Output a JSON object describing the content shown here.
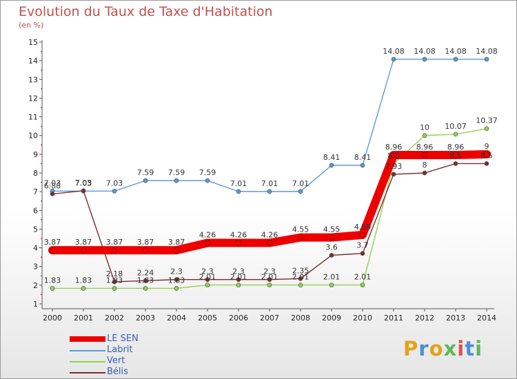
{
  "header": {
    "title": "Evolution du Taux de Taxe d'Habitation",
    "unit": "(en %)"
  },
  "logo": {
    "letters": [
      "P",
      "r",
      "o",
      "x",
      "i",
      "t",
      "i"
    ],
    "colors": [
      "#e3a21a",
      "#4a90d9",
      "#e3a21a",
      "#5cb85c",
      "#d9534f",
      "#4a90d9",
      "#5cb85c"
    ]
  },
  "chart_data": {
    "type": "line",
    "title": "Evolution du Taux de Taxe d'Habitation",
    "ylabel": "(en %)",
    "xlabel": "",
    "x": [
      "2000",
      "2001",
      "2002",
      "2003",
      "2004",
      "2005",
      "2006",
      "2007",
      "2008",
      "2009",
      "2010",
      "2011",
      "2012",
      "2013",
      "2014"
    ],
    "ylim": [
      1,
      15
    ],
    "yticks": [
      "1",
      "2",
      "3",
      "4",
      "5",
      "6",
      "7",
      "8",
      "9",
      "10",
      "11",
      "12",
      "13",
      "14",
      "15"
    ],
    "grid": false,
    "legend_position": "bottom-left",
    "series": [
      {
        "name": "LE SEN",
        "color": "#ee0000",
        "values": [
          3.87,
          3.87,
          3.87,
          3.87,
          3.87,
          4.26,
          4.26,
          4.26,
          4.55,
          4.55,
          4.69,
          8.96,
          8.96,
          8.96,
          9
        ],
        "labels": [
          "3.87",
          "3.87",
          "3.87",
          "3.87",
          "3.87",
          "4.26",
          "4.26",
          "4.26",
          "4.55",
          "4.55",
          "4.69",
          "8.96",
          "8.96",
          "8.96",
          "9"
        ]
      },
      {
        "name": "Labrit",
        "color": "#5b9bd5",
        "values": [
          7.03,
          7.03,
          7.03,
          7.59,
          7.59,
          7.59,
          7.01,
          7.01,
          7.01,
          8.41,
          8.41,
          14.08,
          14.08,
          14.08,
          14.08
        ],
        "labels": [
          "7.03",
          "7.03",
          "7.03",
          "7.59",
          "7.59",
          "7.59",
          "7.01",
          "7.01",
          "7.01",
          "8.41",
          "8.41",
          "14.08",
          "14.08",
          "14.08",
          "14.08"
        ]
      },
      {
        "name": "Vert",
        "color": "#92d050",
        "values": [
          1.83,
          1.83,
          1.83,
          1.83,
          1.83,
          2.01,
          2.01,
          2.01,
          2.01,
          2.01,
          2.01,
          8.5,
          10,
          10.07,
          10.37
        ],
        "labels": [
          "1.83",
          "1.83",
          "1.83",
          "1.83",
          "1.83",
          "2.01",
          "2.01",
          "2.01",
          "2.01",
          "2.01",
          "2.01",
          "8.5",
          "10",
          "10.07",
          "10.37"
        ]
      },
      {
        "name": "Bélis",
        "color": "#7b2c2c",
        "values": [
          6.88,
          7.05,
          2.18,
          2.24,
          2.3,
          2.3,
          2.3,
          2.3,
          2.35,
          3.6,
          3.7,
          7.93,
          8,
          8.5,
          8.5
        ],
        "labels": [
          "6.88",
          "7.05",
          "2.18",
          "2.24",
          "2.3",
          "2.3",
          "2.3",
          "2.3",
          "2.35",
          "3.6",
          "3.7",
          "7.93",
          "8",
          "8.5",
          "8.5"
        ]
      }
    ]
  }
}
